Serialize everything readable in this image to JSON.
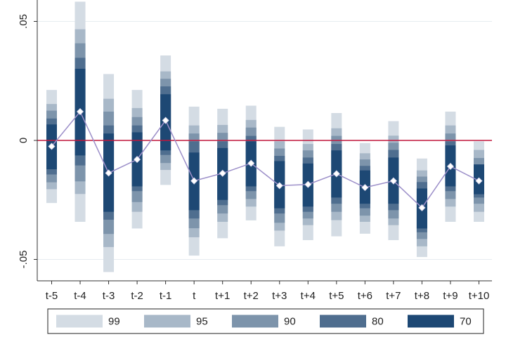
{
  "chart_data": {
    "type": "bar",
    "title": "",
    "xlabel": "",
    "ylabel": "",
    "categories": [
      "t-5",
      "t-4",
      "t-3",
      "t-2",
      "t-1",
      "t",
      "t+1",
      "t+2",
      "t+3",
      "t+4",
      "t+5",
      "t+6",
      "t+7",
      "t+8",
      "t+9",
      "t+10"
    ],
    "point_estimates": [
      -0.0025,
      0.0121,
      -0.0137,
      -0.008,
      0.0084,
      -0.017,
      -0.0138,
      -0.0096,
      -0.019,
      -0.0185,
      -0.014,
      -0.0198,
      -0.017,
      -0.0283,
      -0.0109,
      -0.017
    ],
    "confidence_intervals": [
      {
        "level": "99",
        "color": "#d4dce4",
        "lower": [
          -0.0263,
          -0.0342,
          -0.0553,
          -0.037,
          -0.0187,
          -0.0484,
          -0.0411,
          -0.0336,
          -0.0445,
          -0.0419,
          -0.0403,
          -0.0392,
          -0.0419,
          -0.049,
          -0.0342,
          -0.0342
        ],
        "upper": [
          0.0212,
          0.0583,
          0.0279,
          0.0212,
          0.0357,
          0.0142,
          0.0133,
          0.0146,
          0.0057,
          0.0046,
          0.0115,
          -0.0011,
          0.0081,
          -0.0076,
          0.0121,
          -0.0004
        ]
      },
      {
        "level": "95",
        "color": "#a8b8c8",
        "lower": [
          -0.0205,
          -0.0225,
          -0.0448,
          -0.03,
          -0.0124,
          -0.0407,
          -0.0342,
          -0.0278,
          -0.0379,
          -0.0356,
          -0.0335,
          -0.0342,
          -0.0356,
          -0.0445,
          -0.0278,
          -0.03
        ],
        "upper": [
          0.0153,
          0.0467,
          0.0175,
          0.0136,
          0.029,
          0.0063,
          0.0065,
          0.0086,
          -0.0004,
          -0.0015,
          0.0051,
          -0.0054,
          0.002,
          -0.0126,
          0.0063,
          -0.004
        ]
      },
      {
        "level": "90",
        "color": "#7d94ab",
        "lower": [
          -0.0176,
          -0.0172,
          -0.0393,
          -0.0259,
          -0.0095,
          -0.0369,
          -0.0307,
          -0.0246,
          -0.0346,
          -0.0328,
          -0.03,
          -0.0316,
          -0.0328,
          -0.0414,
          -0.0246,
          -0.0266
        ],
        "upper": [
          0.0125,
          0.0408,
          0.0121,
          0.0098,
          0.0259,
          0.0029,
          0.0032,
          0.0054,
          -0.0034,
          -0.0042,
          0.0019,
          -0.008,
          -0.001,
          -0.0152,
          0.0029,
          -0.0074
        ]
      },
      {
        "level": "80",
        "color": "#4f6e8f",
        "lower": [
          -0.0143,
          -0.0105,
          -0.0333,
          -0.0213,
          -0.0061,
          -0.0328,
          -0.0272,
          -0.0213,
          -0.0307,
          -0.03,
          -0.0266,
          -0.0285,
          -0.0293,
          -0.0386,
          -0.0213,
          -0.024
        ],
        "upper": [
          0.0092,
          0.0347,
          0.0063,
          0.0063,
          0.0227,
          -0.0004,
          -0.0004,
          0.0019,
          -0.0065,
          -0.0072,
          -0.0015,
          -0.0107,
          -0.004,
          -0.0175,
          -0.0004,
          -0.0101
        ]
      },
      {
        "level": "70",
        "color": "#1d4874",
        "lower": [
          -0.0121,
          -0.0063,
          -0.03,
          -0.0193,
          -0.0042,
          -0.0293,
          -0.025,
          -0.0193,
          -0.0285,
          -0.0278,
          -0.024,
          -0.0266,
          -0.0266,
          -0.037,
          -0.0193,
          -0.0226
        ],
        "upper": [
          0.0067,
          0.0301,
          0.0029,
          0.0034,
          0.0194,
          -0.0051,
          -0.0032,
          -0.0004,
          -0.0087,
          -0.0097,
          -0.0042,
          -0.0126,
          -0.0072,
          -0.0202,
          -0.0021,
          -0.0101
        ]
      }
    ],
    "y_ticks": [
      {
        "value": 0.05,
        "label": ".05"
      },
      {
        "value": 0,
        "label": "0"
      },
      {
        "value": -0.05,
        "label": "-.05"
      }
    ],
    "ylim": [
      -0.059,
      0.059
    ],
    "reference_line": {
      "value": 0,
      "color": "#c0163c"
    },
    "line_color": "#9c8fc9",
    "marker_color": "#ffffff",
    "grid": true,
    "legend": {
      "position": "bottom",
      "items": [
        {
          "label": "99",
          "color": "#d4dce4"
        },
        {
          "label": "95",
          "color": "#a8b8c8"
        },
        {
          "label": "90",
          "color": "#7d94ab"
        },
        {
          "label": "80",
          "color": "#4f6e8f"
        },
        {
          "label": "70",
          "color": "#1d4874"
        }
      ]
    }
  }
}
